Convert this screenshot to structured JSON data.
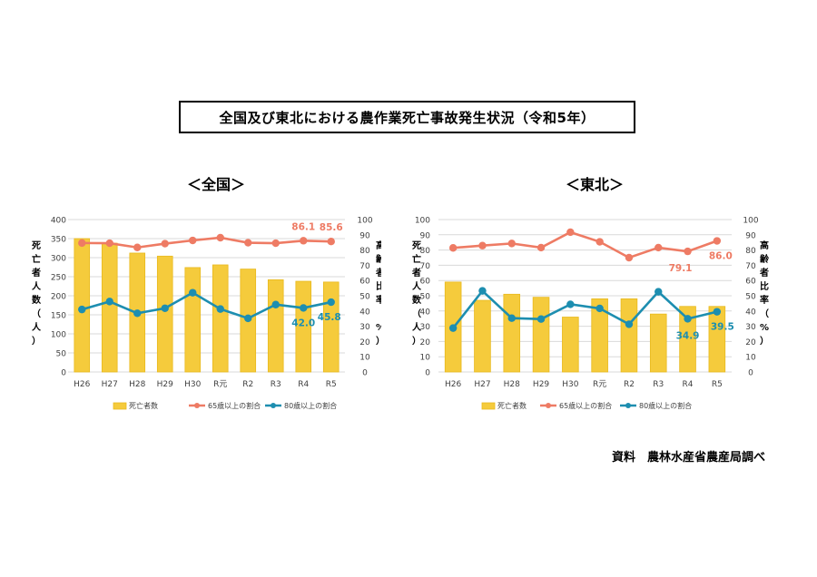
{
  "title": "全国及び東北における農作業死亡事故発生状況（令和5年）",
  "source": "資料　農林水産省農産局調べ",
  "colors": {
    "bar": "#F5CB3C",
    "bar_stroke": "#E8B91E",
    "pct65": "#EE7B64",
    "pct80": "#1D8EB0",
    "grid": "#D9D9D9"
  },
  "chart_data": [
    {
      "type": "bar",
      "heading": "＜全国＞",
      "categories": [
        "H26",
        "H27",
        "H28",
        "H29",
        "H30",
        "R元",
        "R2",
        "R3",
        "R4",
        "R5"
      ],
      "y_left": {
        "label_chars": [
          "死",
          "亡",
          "者",
          "人",
          "数",
          "（",
          "人",
          "）"
        ],
        "ylim": [
          0,
          400
        ],
        "ticks": [
          "0",
          "50",
          "100",
          "150",
          "200",
          "250",
          "300",
          "350",
          "400"
        ]
      },
      "y_right": {
        "label_chars": [
          "高",
          "齢",
          "者",
          "比",
          "率",
          "（",
          "%",
          "）"
        ],
        "ylim": [
          0,
          100
        ],
        "ticks": [
          "0",
          "10",
          "20",
          "30",
          "40",
          "50",
          "60",
          "70",
          "80",
          "90",
          "100"
        ]
      },
      "series": [
        {
          "name": "死亡者数",
          "type": "bar",
          "axis": "left",
          "values": [
            350,
            338,
            312,
            304,
            274,
            281,
            270,
            242,
            238,
            236
          ]
        },
        {
          "name": "65歳以上の割合",
          "type": "line",
          "axis": "right",
          "values": [
            84.6,
            84.5,
            81.7,
            84.2,
            86.3,
            88.1,
            84.8,
            84.5,
            86.1,
            85.6
          ]
        },
        {
          "name": "80歳以上の割合",
          "type": "line",
          "axis": "right",
          "values": [
            41.0,
            46.2,
            38.5,
            41.8,
            52.0,
            41.3,
            35.2,
            44.2,
            42.0,
            45.8
          ]
        }
      ],
      "annotations": [
        {
          "series": 1,
          "index": 8,
          "text": "86.1"
        },
        {
          "series": 1,
          "index": 9,
          "text": "85.6"
        },
        {
          "series": 2,
          "index": 8,
          "text": "42.0"
        },
        {
          "series": 2,
          "index": 9,
          "text": "45.8"
        }
      ],
      "legend": "bottom"
    },
    {
      "type": "bar",
      "heading": "＜東北＞",
      "categories": [
        "H26",
        "H27",
        "H28",
        "H29",
        "H30",
        "R元",
        "R2",
        "R3",
        "R4",
        "R5"
      ],
      "y_left": {
        "label_chars": [
          "死",
          "亡",
          "者",
          "人",
          "数",
          "（",
          "人",
          "）"
        ],
        "ylim": [
          0,
          100
        ],
        "ticks": [
          "0",
          "10",
          "20",
          "30",
          "40",
          "50",
          "60",
          "70",
          "80",
          "90",
          "100"
        ]
      },
      "y_right": {
        "label_chars": [
          "高",
          "齢",
          "者",
          "比",
          "率",
          "（",
          "%",
          "）"
        ],
        "ylim": [
          0,
          100
        ],
        "ticks": [
          "0",
          "10",
          "20",
          "30",
          "40",
          "50",
          "60",
          "70",
          "80",
          "90",
          "100"
        ]
      },
      "series": [
        {
          "name": "死亡者数",
          "type": "bar",
          "axis": "left",
          "values": [
            59,
            47,
            51,
            49,
            36,
            48,
            48,
            38,
            43,
            43
          ]
        },
        {
          "name": "65歳以上の割合",
          "type": "line",
          "axis": "right",
          "values": [
            81.4,
            82.9,
            84.3,
            81.6,
            91.7,
            85.4,
            75.0,
            81.6,
            79.1,
            86.0
          ]
        },
        {
          "name": "80歳以上の割合",
          "type": "line",
          "axis": "right",
          "values": [
            28.8,
            53.2,
            35.3,
            34.7,
            44.4,
            41.7,
            31.3,
            52.6,
            34.9,
            39.5
          ]
        }
      ],
      "annotations": [
        {
          "series": 1,
          "index": 8,
          "text": "79.1"
        },
        {
          "series": 1,
          "index": 9,
          "text": "86.0"
        },
        {
          "series": 2,
          "index": 8,
          "text": "34.9"
        },
        {
          "series": 2,
          "index": 9,
          "text": "39.5"
        }
      ],
      "legend": "bottom"
    }
  ]
}
